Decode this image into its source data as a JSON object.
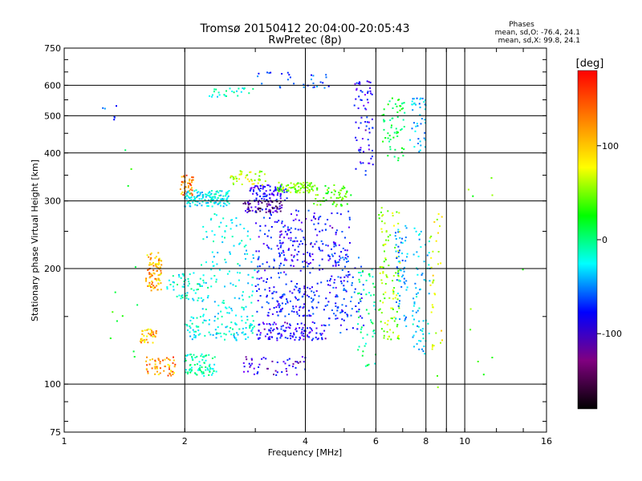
{
  "chart_data": {
    "type": "scatter",
    "title": "Tromsø 20150412 20:04:00-20:05:43",
    "subtitle": "RwPretec (8p)",
    "xlabel": "Frequency [MHz]",
    "ylabel": "Stationary phase Virtual Height [km]",
    "x_scale": "log",
    "y_scale": "log",
    "xlim": [
      1,
      16
    ],
    "ylim": [
      75,
      750
    ],
    "x_ticks": [
      "1",
      "2",
      "4",
      "6",
      "8",
      "10",
      "16"
    ],
    "y_ticks": [
      "75",
      "100",
      "200",
      "300",
      "400",
      "500",
      "600",
      "750"
    ],
    "x_gridlines": [
      2,
      4,
      6,
      8,
      9,
      10
    ],
    "y_gridlines": [
      100,
      200,
      300,
      400,
      500,
      600
    ],
    "grid": true,
    "phases_header": "Phases",
    "phase_stats": [
      "mean, sd,O: -76.4, 24.1",
      "mean, sd,X:  99.8, 24.1"
    ],
    "colorbar": {
      "label": "[deg]",
      "range": [
        -180,
        180
      ],
      "ticks": [
        "100",
        "0",
        "-100"
      ],
      "tick_values": [
        100,
        0,
        -100
      ],
      "colors": [
        "#ff0000",
        "#ff8000",
        "#ffff00",
        "#00ff00",
        "#00ffff",
        "#0000ff",
        "#800080",
        "#000000"
      ]
    },
    "clusters": [
      {
        "x": [
          1.6,
          1.75
        ],
        "y": [
          175,
          220
        ],
        "phase": 130,
        "n": 90
      },
      {
        "x": [
          1.55,
          1.7
        ],
        "y": [
          128,
          140
        ],
        "phase": 130,
        "n": 40
      },
      {
        "x": [
          1.6,
          1.9
        ],
        "y": [
          105,
          118
        ],
        "phase": 140,
        "n": 55
      },
      {
        "x": [
          1.95,
          2.1
        ],
        "y": [
          310,
          350
        ],
        "phase": 140,
        "n": 45
      },
      {
        "x": [
          2.0,
          2.6
        ],
        "y": [
          290,
          320
        ],
        "phase": -30,
        "n": 130
      },
      {
        "x": [
          2.6,
          3.2
        ],
        "y": [
          330,
          360
        ],
        "phase": 90,
        "n": 45
      },
      {
        "x": [
          2.9,
          3.6
        ],
        "y": [
          300,
          330
        ],
        "phase": -110,
        "n": 90
      },
      {
        "x": [
          2.8,
          3.5
        ],
        "y": [
          280,
          300
        ],
        "phase": -145,
        "n": 70
      },
      {
        "x": [
          3.4,
          4.2
        ],
        "y": [
          315,
          335
        ],
        "phase": 75,
        "n": 80
      },
      {
        "x": [
          4.2,
          5.2
        ],
        "y": [
          290,
          330
        ],
        "phase": 60,
        "n": 60
      },
      {
        "x": [
          2.3,
          3.0
        ],
        "y": [
          560,
          590
        ],
        "phase": -20,
        "n": 25
      },
      {
        "x": [
          3.0,
          4.6
        ],
        "y": [
          590,
          650
        ],
        "phase": -80,
        "n": 30
      },
      {
        "x": [
          5.3,
          5.9
        ],
        "y": [
          350,
          620
        ],
        "phase": -110,
        "n": 70
      },
      {
        "x": [
          6.2,
          7.1
        ],
        "y": [
          380,
          560
        ],
        "phase": 20,
        "n": 60
      },
      {
        "x": [
          7.3,
          8.0
        ],
        "y": [
          400,
          560
        ],
        "phase": -50,
        "n": 45
      },
      {
        "x": [
          1.8,
          2.3
        ],
        "y": [
          165,
          195
        ],
        "phase": -20,
        "n": 60
      },
      {
        "x": [
          2.0,
          2.4
        ],
        "y": [
          105,
          120
        ],
        "phase": -10,
        "n": 80
      },
      {
        "x": [
          2.0,
          3.0
        ],
        "y": [
          130,
          150
        ],
        "phase": -30,
        "n": 100
      },
      {
        "x": [
          3.0,
          4.5
        ],
        "y": [
          130,
          145
        ],
        "phase": -110,
        "n": 120
      },
      {
        "x": [
          3.2,
          4.2
        ],
        "y": [
          150,
          180
        ],
        "phase": -100,
        "n": 80
      },
      {
        "x": [
          2.8,
          4.0
        ],
        "y": [
          105,
          118
        ],
        "phase": -120,
        "n": 50
      },
      {
        "x": [
          2.2,
          3.0
        ],
        "y": [
          150,
          280
        ],
        "phase": -30,
        "n": 120
      },
      {
        "x": [
          3.0,
          5.2
        ],
        "y": [
          150,
          290
        ],
        "phase": -100,
        "n": 220
      },
      {
        "x": [
          3.4,
          4.8
        ],
        "y": [
          200,
          270
        ],
        "phase": -110,
        "n": 90
      },
      {
        "x": [
          4.5,
          5.6
        ],
        "y": [
          135,
          220
        ],
        "phase": -90,
        "n": 80
      },
      {
        "x": [
          5.4,
          6.0
        ],
        "y": [
          110,
          200
        ],
        "phase": 0,
        "n": 55
      },
      {
        "x": [
          6.1,
          6.9
        ],
        "y": [
          130,
          290
        ],
        "phase": 80,
        "n": 110
      },
      {
        "x": [
          6.7,
          7.2
        ],
        "y": [
          140,
          260
        ],
        "phase": -60,
        "n": 60
      },
      {
        "x": [
          7.4,
          8.2
        ],
        "y": [
          120,
          270
        ],
        "phase": -40,
        "n": 70
      },
      {
        "x": [
          8.2,
          8.8
        ],
        "y": [
          120,
          280
        ],
        "phase": 100,
        "n": 35
      },
      {
        "x": [
          1.3,
          1.6
        ],
        "y": [
          100,
          420
        ],
        "phase": 40,
        "n": 12
      },
      {
        "x": [
          8.5,
          14
        ],
        "y": [
          95,
          420
        ],
        "phase": 60,
        "n": 12
      },
      {
        "x": [
          1.2,
          1.4
        ],
        "y": [
          480,
          540
        ],
        "phase": -80,
        "n": 6
      }
    ]
  }
}
